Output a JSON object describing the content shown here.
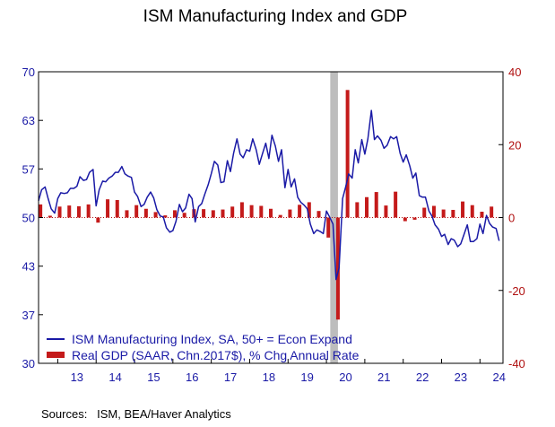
{
  "chart_data": {
    "type": "bar+line",
    "title": "ISM Manufacturing Index and GDP",
    "left_axis": {
      "range": [
        30,
        70
      ],
      "ticks": [
        "70",
        "63",
        "57",
        "50",
        "43",
        "37",
        "30"
      ],
      "tick_values": [
        70,
        63.33,
        56.67,
        50,
        43.33,
        36.67,
        30
      ],
      "color": "#1a1aa6"
    },
    "right_axis": {
      "range": [
        -40,
        40
      ],
      "ticks": [
        "40",
        "20",
        "0",
        "-20",
        "-40"
      ],
      "tick_values": [
        40,
        20,
        0,
        -20,
        -40
      ],
      "color": "#b01010"
    },
    "x_axis": {
      "range": [
        2012.5,
        2024.6
      ],
      "labels": [
        "13",
        "14",
        "15",
        "16",
        "17",
        "18",
        "19",
        "20",
        "21",
        "22",
        "23",
        "24"
      ]
    },
    "recession_shading": {
      "start": 2020.1,
      "end": 2020.3,
      "color": "#bdbdbd"
    },
    "reference_line": {
      "axis": "left",
      "value": 50,
      "style": "dotted",
      "color": "#b01010"
    },
    "series": [
      {
        "name": "ISM Manufacturing Index, SA, 50+ = Econ Expand",
        "type": "line",
        "axis": "left",
        "color": "#1a1aa6",
        "points": [
          [
            2012.5,
            52.3
          ],
          [
            2012.58,
            53.8
          ],
          [
            2012.67,
            54.2
          ],
          [
            2012.75,
            52.6
          ],
          [
            2012.83,
            51.2
          ],
          [
            2012.92,
            50.6
          ],
          [
            2013.0,
            52.6
          ],
          [
            2013.08,
            53.4
          ],
          [
            2013.17,
            53.3
          ],
          [
            2013.25,
            53.4
          ],
          [
            2013.33,
            54.0
          ],
          [
            2013.42,
            54.0
          ],
          [
            2013.5,
            54.3
          ],
          [
            2013.58,
            55.6
          ],
          [
            2013.67,
            55.1
          ],
          [
            2013.75,
            55.2
          ],
          [
            2013.83,
            56.2
          ],
          [
            2013.92,
            56.6
          ],
          [
            2014.0,
            51.6
          ],
          [
            2014.08,
            53.8
          ],
          [
            2014.17,
            55.0
          ],
          [
            2014.25,
            54.9
          ],
          [
            2014.33,
            55.4
          ],
          [
            2014.42,
            55.7
          ],
          [
            2014.5,
            56.2
          ],
          [
            2014.58,
            56.2
          ],
          [
            2014.67,
            57.0
          ],
          [
            2014.75,
            56.0
          ],
          [
            2014.83,
            55.7
          ],
          [
            2014.92,
            55.5
          ],
          [
            2015.0,
            53.5
          ],
          [
            2015.08,
            52.9
          ],
          [
            2015.17,
            51.5
          ],
          [
            2015.25,
            51.8
          ],
          [
            2015.33,
            52.8
          ],
          [
            2015.42,
            53.5
          ],
          [
            2015.5,
            52.7
          ],
          [
            2015.58,
            51.1
          ],
          [
            2015.67,
            50.2
          ],
          [
            2015.75,
            50.1
          ],
          [
            2015.83,
            48.6
          ],
          [
            2015.92,
            48.0
          ],
          [
            2016.0,
            48.2
          ],
          [
            2016.08,
            49.5
          ],
          [
            2016.17,
            51.8
          ],
          [
            2016.25,
            50.8
          ],
          [
            2016.33,
            51.3
          ],
          [
            2016.42,
            53.2
          ],
          [
            2016.5,
            52.6
          ],
          [
            2016.58,
            49.4
          ],
          [
            2016.67,
            51.5
          ],
          [
            2016.75,
            51.9
          ],
          [
            2016.83,
            53.2
          ],
          [
            2016.92,
            54.5
          ],
          [
            2017.0,
            56.0
          ],
          [
            2017.08,
            57.7
          ],
          [
            2017.17,
            57.2
          ],
          [
            2017.25,
            54.8
          ],
          [
            2017.33,
            54.9
          ],
          [
            2017.42,
            57.8
          ],
          [
            2017.5,
            56.3
          ],
          [
            2017.58,
            58.8
          ],
          [
            2017.67,
            60.8
          ],
          [
            2017.75,
            58.7
          ],
          [
            2017.83,
            58.2
          ],
          [
            2017.92,
            59.3
          ],
          [
            2018.0,
            59.1
          ],
          [
            2018.08,
            60.8
          ],
          [
            2018.17,
            59.3
          ],
          [
            2018.25,
            57.3
          ],
          [
            2018.33,
            58.7
          ],
          [
            2018.42,
            60.2
          ],
          [
            2018.5,
            58.1
          ],
          [
            2018.58,
            61.3
          ],
          [
            2018.67,
            59.8
          ],
          [
            2018.75,
            57.7
          ],
          [
            2018.83,
            59.3
          ],
          [
            2018.92,
            54.1
          ],
          [
            2019.0,
            56.6
          ],
          [
            2019.08,
            54.2
          ],
          [
            2019.17,
            55.3
          ],
          [
            2019.25,
            52.8
          ],
          [
            2019.33,
            52.1
          ],
          [
            2019.42,
            51.7
          ],
          [
            2019.5,
            51.2
          ],
          [
            2019.58,
            49.1
          ],
          [
            2019.67,
            47.8
          ],
          [
            2019.75,
            48.3
          ],
          [
            2019.83,
            48.1
          ],
          [
            2019.92,
            47.8
          ],
          [
            2020.0,
            50.9
          ],
          [
            2020.08,
            50.1
          ],
          [
            2020.17,
            49.1
          ],
          [
            2020.25,
            41.5
          ],
          [
            2020.33,
            43.1
          ],
          [
            2020.42,
            52.6
          ],
          [
            2020.5,
            54.2
          ],
          [
            2020.58,
            56.0
          ],
          [
            2020.67,
            55.4
          ],
          [
            2020.75,
            59.3
          ],
          [
            2020.83,
            57.5
          ],
          [
            2020.92,
            60.7
          ],
          [
            2021.0,
            58.7
          ],
          [
            2021.08,
            60.8
          ],
          [
            2021.17,
            64.7
          ],
          [
            2021.25,
            60.7
          ],
          [
            2021.33,
            61.2
          ],
          [
            2021.42,
            60.6
          ],
          [
            2021.5,
            59.5
          ],
          [
            2021.58,
            59.9
          ],
          [
            2021.67,
            61.1
          ],
          [
            2021.75,
            60.8
          ],
          [
            2021.83,
            61.1
          ],
          [
            2021.92,
            58.8
          ],
          [
            2022.0,
            57.6
          ],
          [
            2022.08,
            58.6
          ],
          [
            2022.17,
            57.1
          ],
          [
            2022.25,
            55.4
          ],
          [
            2022.33,
            56.1
          ],
          [
            2022.42,
            53.0
          ],
          [
            2022.5,
            52.8
          ],
          [
            2022.58,
            52.8
          ],
          [
            2022.67,
            50.9
          ],
          [
            2022.75,
            50.2
          ],
          [
            2022.83,
            49.0
          ],
          [
            2022.92,
            48.4
          ],
          [
            2023.0,
            47.4
          ],
          [
            2023.08,
            47.7
          ],
          [
            2023.17,
            46.3
          ],
          [
            2023.25,
            47.1
          ],
          [
            2023.33,
            46.9
          ],
          [
            2023.42,
            46.0
          ],
          [
            2023.5,
            46.4
          ],
          [
            2023.58,
            47.6
          ],
          [
            2023.67,
            49.0
          ],
          [
            2023.75,
            46.7
          ],
          [
            2023.83,
            46.7
          ],
          [
            2023.92,
            47.1
          ],
          [
            2024.0,
            49.1
          ],
          [
            2024.08,
            47.8
          ],
          [
            2024.17,
            50.3
          ],
          [
            2024.25,
            49.2
          ],
          [
            2024.33,
            48.7
          ],
          [
            2024.42,
            48.5
          ],
          [
            2024.5,
            46.8
          ]
        ]
      },
      {
        "name": "Real GDP (SAAR, Chn.2017$), % Chg Annual Rate",
        "type": "bar",
        "axis": "right",
        "color": "#c41a1a",
        "points": [
          [
            2012.55,
            3.6
          ],
          [
            2012.8,
            0.5
          ],
          [
            2013.05,
            3.0
          ],
          [
            2013.3,
            3.3
          ],
          [
            2013.55,
            3.1
          ],
          [
            2013.8,
            3.6
          ],
          [
            2014.05,
            -1.4
          ],
          [
            2014.3,
            5.0
          ],
          [
            2014.55,
            4.8
          ],
          [
            2014.8,
            2.0
          ],
          [
            2015.05,
            3.4
          ],
          [
            2015.3,
            2.4
          ],
          [
            2015.55,
            1.5
          ],
          [
            2015.8,
            0.6
          ],
          [
            2016.05,
            2.0
          ],
          [
            2016.3,
            1.3
          ],
          [
            2016.55,
            2.3
          ],
          [
            2016.8,
            2.3
          ],
          [
            2017.05,
            2.0
          ],
          [
            2017.3,
            2.2
          ],
          [
            2017.55,
            3.0
          ],
          [
            2017.8,
            4.2
          ],
          [
            2018.05,
            3.4
          ],
          [
            2018.3,
            3.2
          ],
          [
            2018.55,
            2.4
          ],
          [
            2018.8,
            0.7
          ],
          [
            2019.05,
            2.2
          ],
          [
            2019.3,
            3.5
          ],
          [
            2019.55,
            4.2
          ],
          [
            2019.8,
            1.8
          ],
          [
            2020.05,
            -5.5
          ],
          [
            2020.3,
            -28.0
          ],
          [
            2020.55,
            35.0
          ],
          [
            2020.8,
            4.2
          ],
          [
            2021.05,
            5.6
          ],
          [
            2021.3,
            7.0
          ],
          [
            2021.55,
            3.3
          ],
          [
            2021.8,
            7.1
          ],
          [
            2022.05,
            -1.0
          ],
          [
            2022.3,
            -0.6
          ],
          [
            2022.55,
            2.7
          ],
          [
            2022.8,
            3.2
          ],
          [
            2023.05,
            2.2
          ],
          [
            2023.3,
            2.1
          ],
          [
            2023.55,
            4.4
          ],
          [
            2023.8,
            3.4
          ],
          [
            2024.05,
            1.6
          ],
          [
            2024.3,
            3.0
          ]
        ]
      }
    ],
    "legend": {
      "placement": "bottom-left"
    }
  },
  "source_text": "Sources:   ISM, BEA/Haver Analytics"
}
